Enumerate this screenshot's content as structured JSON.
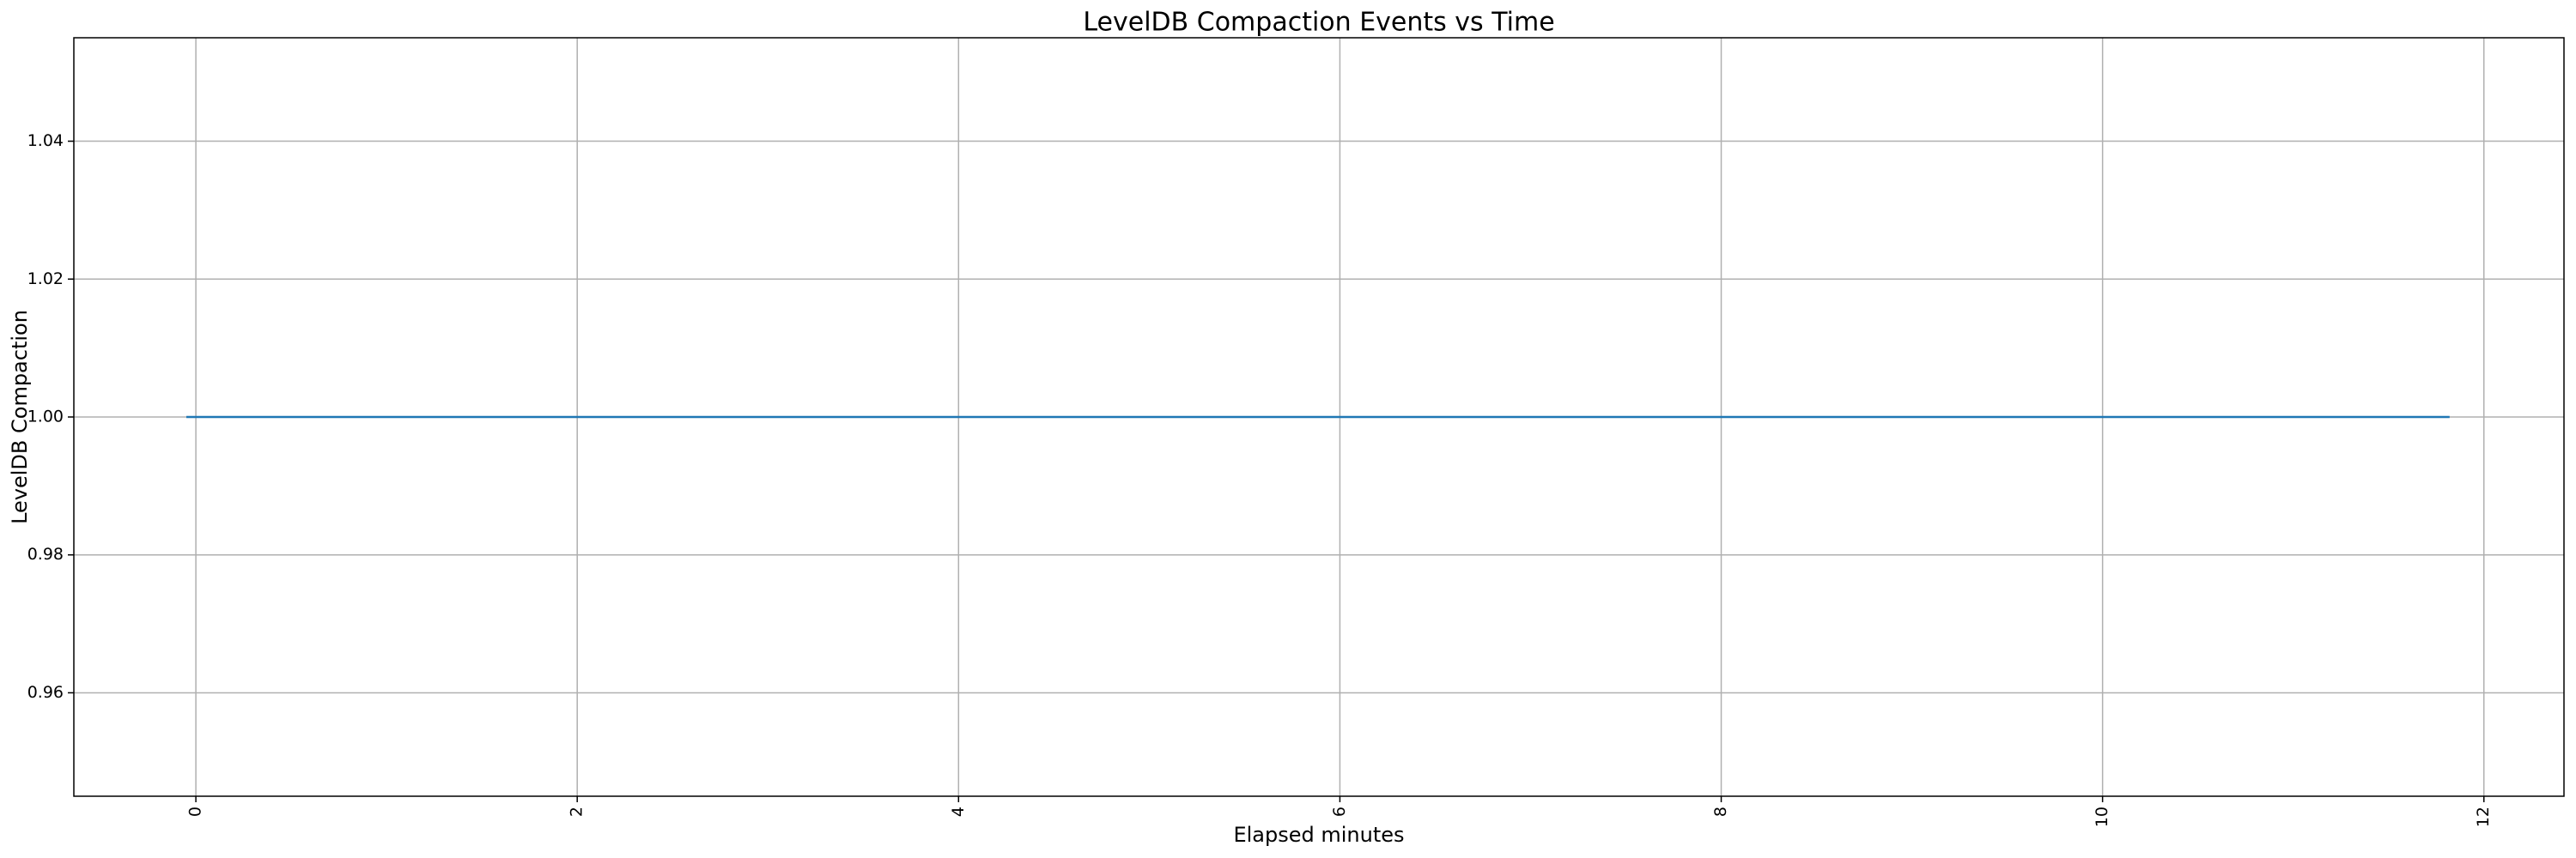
{
  "chart_data": {
    "type": "line",
    "title": "LevelDB Compaction Events vs Time",
    "x_label": "Elapsed minutes",
    "y_label": "LevelDB Compaction",
    "x": [
      -0.05,
      11.82
    ],
    "series": [
      {
        "name": "LevelDB Compaction",
        "color": "#1f77b4",
        "values": [
          1,
          1
        ]
      }
    ],
    "xlim": [
      -0.64,
      12.42
    ],
    "xticks": [
      0,
      2,
      4,
      6,
      8,
      10,
      12
    ],
    "ylim": [
      0.945,
      1.055
    ],
    "yticks": [
      0.96,
      0.98,
      {
        "value": 1,
        "label": "1.00"
      },
      1.02,
      1.04
    ],
    "grid": true
  }
}
